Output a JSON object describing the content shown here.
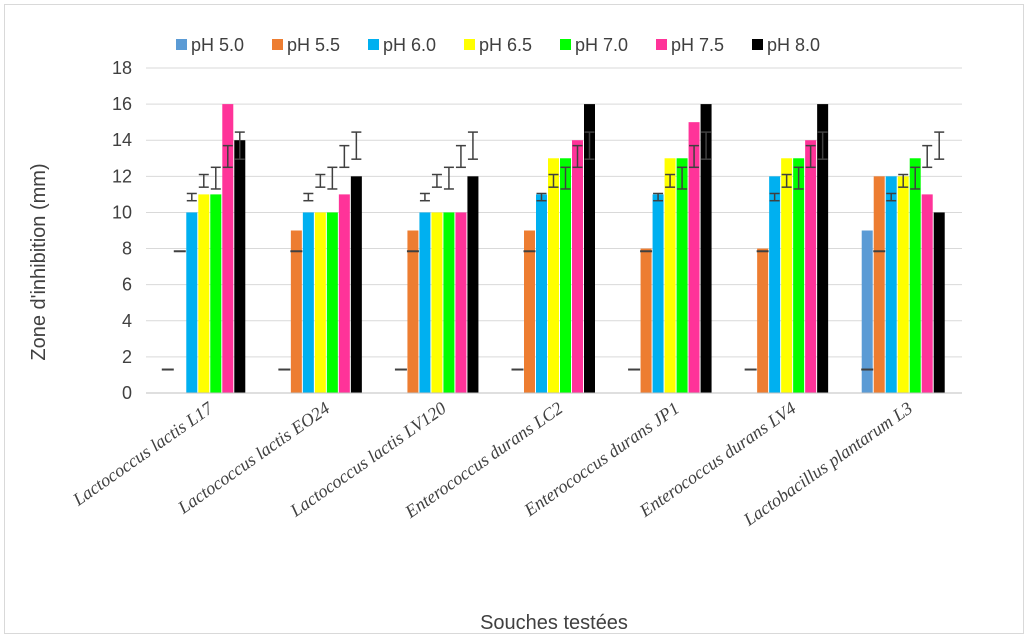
{
  "chart_data": {
    "type": "bar",
    "xlabel": "Souches testées",
    "ylabel": "Zone d'inhibition (mm)",
    "ylim": [
      0,
      18
    ],
    "yticks": [
      0,
      2,
      4,
      6,
      8,
      10,
      12,
      14,
      16,
      18
    ],
    "grid": true,
    "legend_position": "top",
    "categories": [
      "Lactococcus lactis L17",
      "Lactococcus lactis EO24",
      "Lactococcus lactis LV120",
      "Enterococcus durans LC2",
      "Enterococcus durans JP1",
      "Enterococcus durans LV4",
      "Lactobacillus plantarum L3"
    ],
    "series": [
      {
        "name": "pH 5.0",
        "color": "#5b9bd5",
        "values": [
          0,
          0,
          0,
          0,
          0,
          0,
          9
        ],
        "error_center": 1.3,
        "error_halfwidth": 0
      },
      {
        "name": "pH 5.5",
        "color": "#ed7d31",
        "values": [
          0,
          9,
          9,
          9,
          8,
          8,
          12
        ],
        "error_center": 7.85,
        "error_halfwidth": 0
      },
      {
        "name": "pH 6.0",
        "color": "#00b0f0",
        "values": [
          10,
          10,
          10,
          11,
          11,
          12,
          12
        ],
        "error_center": 10.85,
        "error_halfwidth": 0.2
      },
      {
        "name": "pH 6.5",
        "color": "#ffff00",
        "values": [
          11,
          10,
          10,
          13,
          13,
          13,
          12
        ],
        "error_center": 11.75,
        "error_halfwidth": 0.35
      },
      {
        "name": "pH 7.0",
        "color": "#00ff00",
        "values": [
          11,
          10,
          10,
          13,
          13,
          13,
          13
        ],
        "error_center": 11.9,
        "error_halfwidth": 0.6
      },
      {
        "name": "pH 7.5",
        "color": "#ff3399",
        "values": [
          16,
          11,
          10,
          14,
          15,
          14,
          11
        ],
        "error_center": 13.1,
        "error_halfwidth": 0.6
      },
      {
        "name": "pH 8.0",
        "color": "#000000",
        "values": [
          14,
          12,
          12,
          16,
          16,
          16,
          10
        ],
        "error_center": 13.7,
        "error_halfwidth": 0.75
      }
    ]
  }
}
